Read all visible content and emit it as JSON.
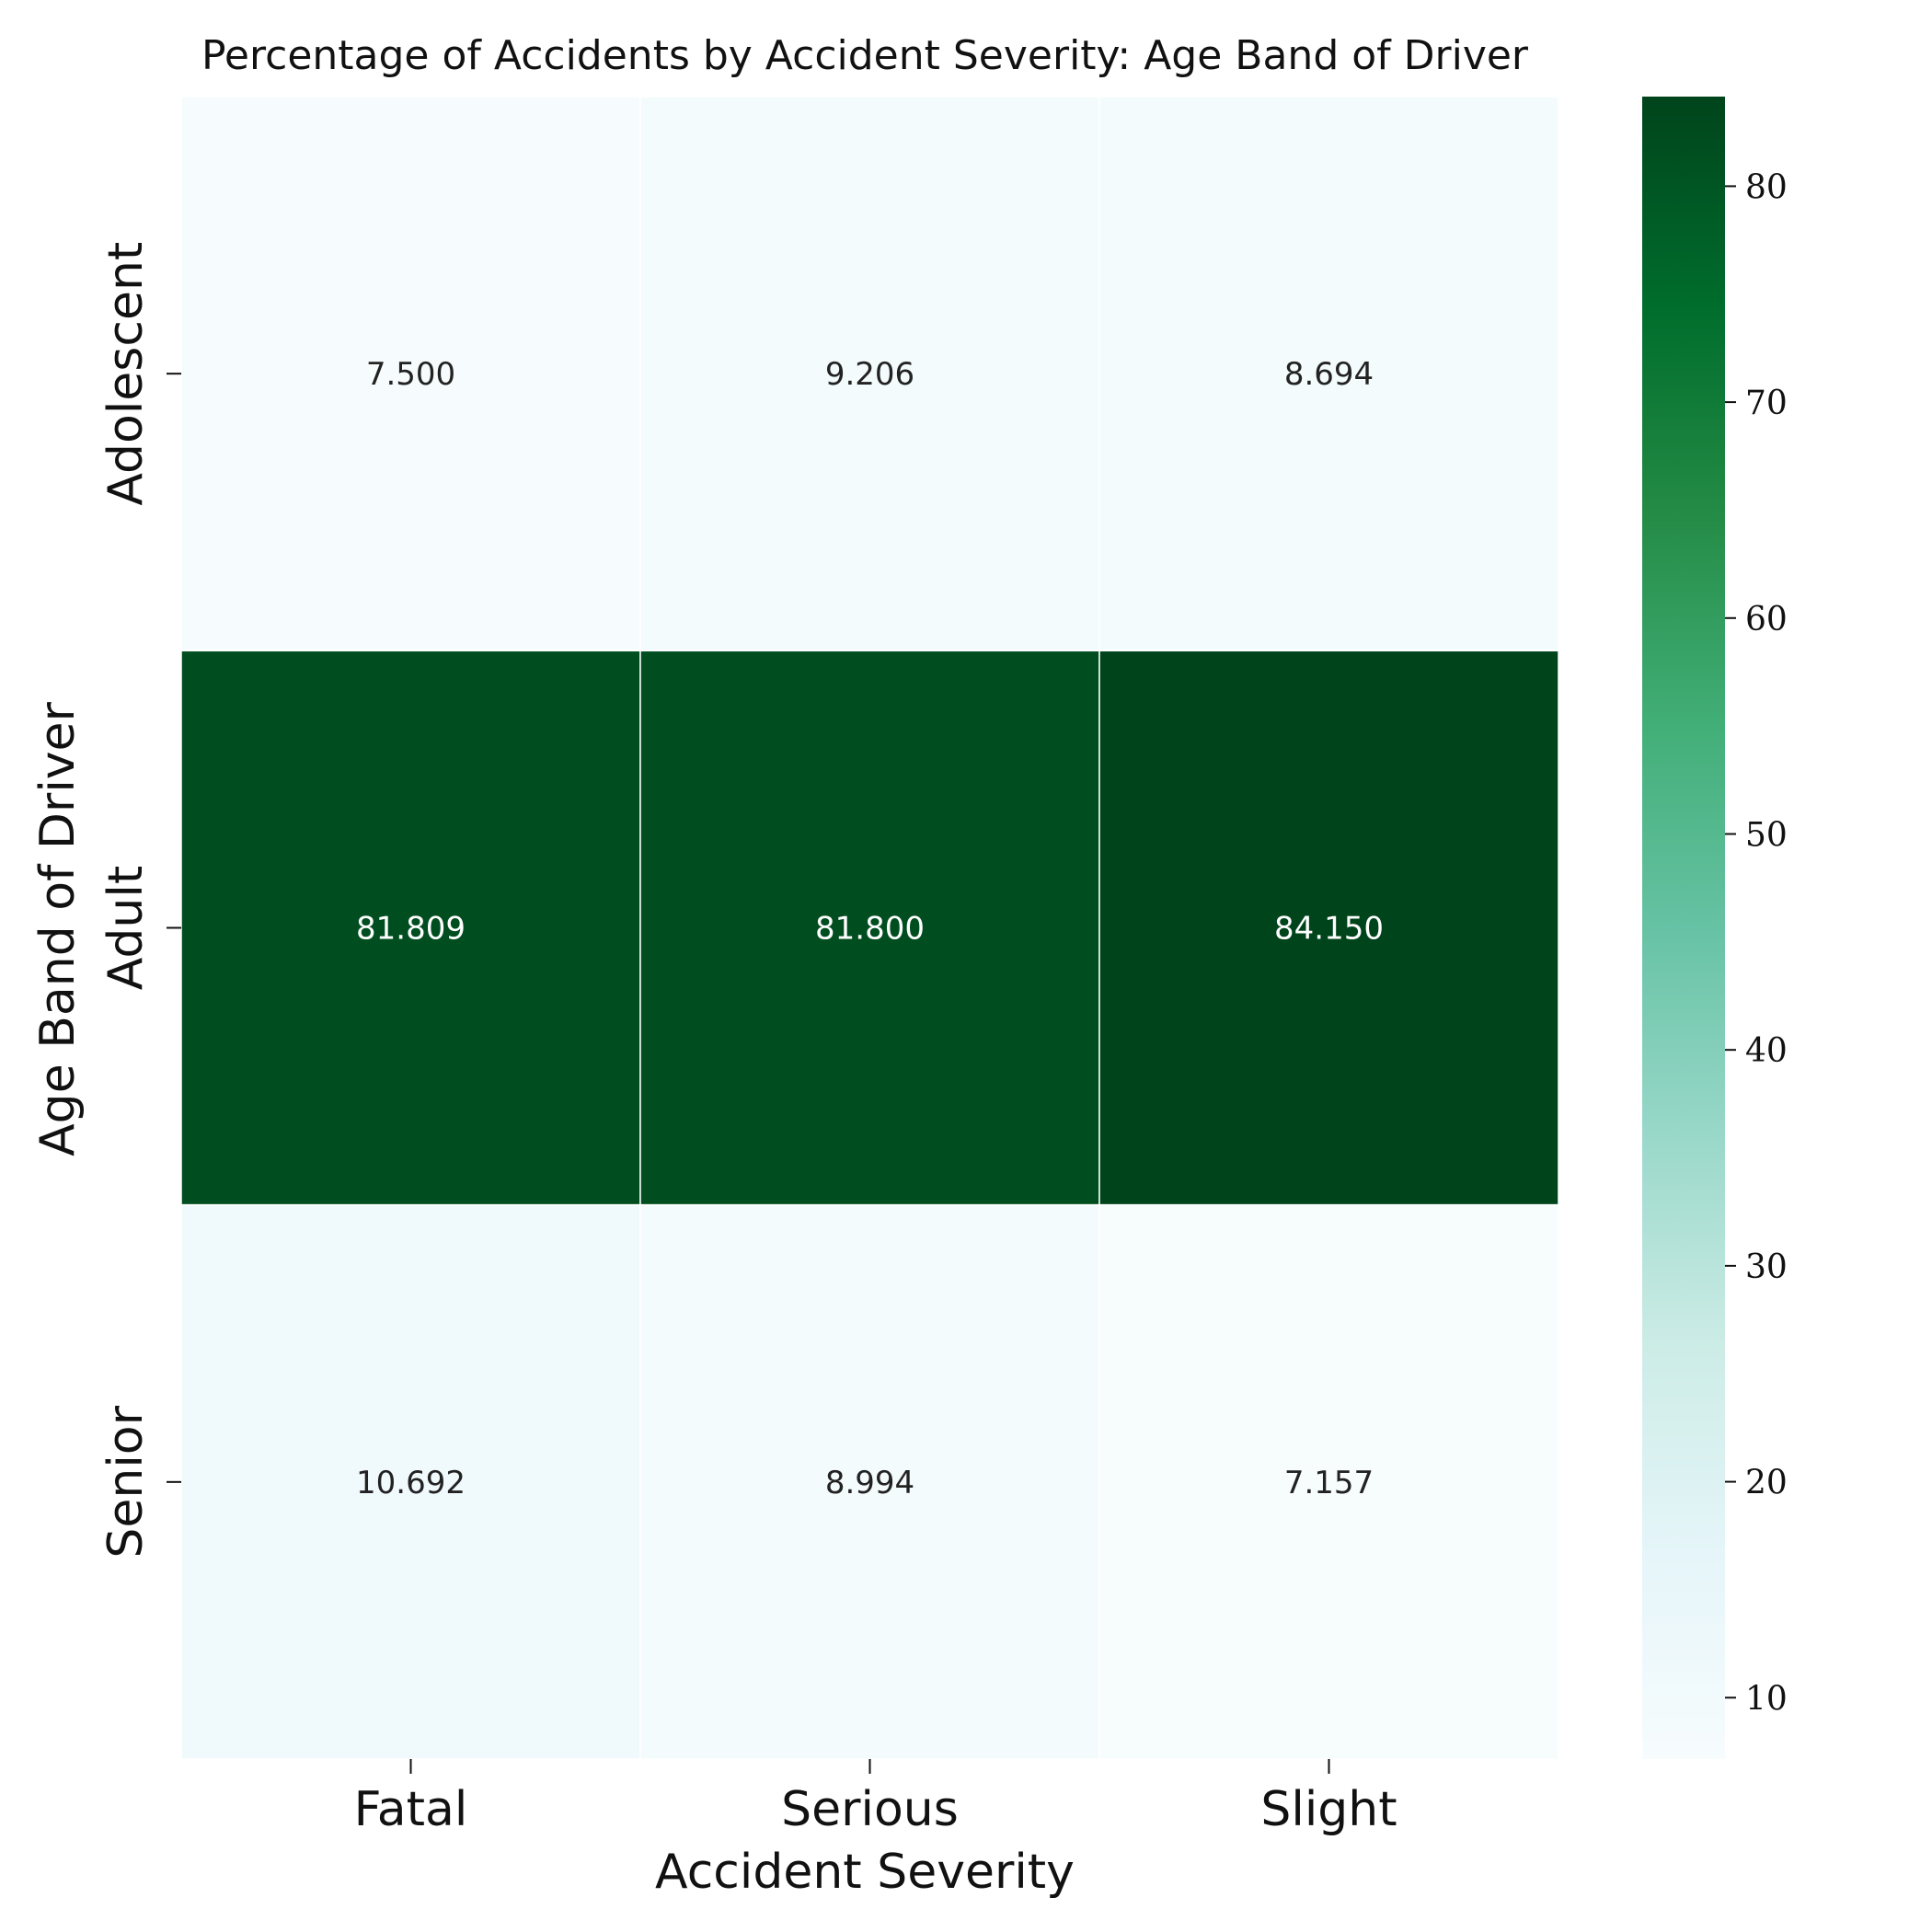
{
  "chart_data": {
    "type": "heatmap",
    "title": "Percentage of Accidents by Accident Severity: Age Band of Driver",
    "xlabel": "Accident Severity",
    "ylabel": "Age Band of Driver",
    "x_categories": [
      "Fatal",
      "Serious",
      "Slight"
    ],
    "y_categories": [
      "Adolescent",
      "Adult",
      "Senior"
    ],
    "values": [
      [
        7.5,
        9.206,
        8.694
      ],
      [
        81.809,
        81.8,
        84.15
      ],
      [
        10.692,
        8.994,
        7.157
      ]
    ],
    "value_labels": [
      [
        "7.500",
        "9.206",
        "8.694"
      ],
      [
        "81.809",
        "81.800",
        "84.150"
      ],
      [
        "10.692",
        "8.994",
        "7.157"
      ]
    ],
    "colorbar": {
      "range": [
        7.157,
        84.15
      ],
      "ticks": [
        10,
        20,
        30,
        40,
        50,
        60,
        70,
        80
      ],
      "tick_labels": [
        "10",
        "20",
        "30",
        "40",
        "50",
        "60",
        "70",
        "80"
      ],
      "colormap": "BuGn",
      "colors": [
        "#f7fcfd",
        "#e5f5f9",
        "#ccece6",
        "#99d8c9",
        "#66c2a4",
        "#41ae76",
        "#238b45",
        "#006d2c",
        "#00441b"
      ]
    },
    "grid": false
  }
}
